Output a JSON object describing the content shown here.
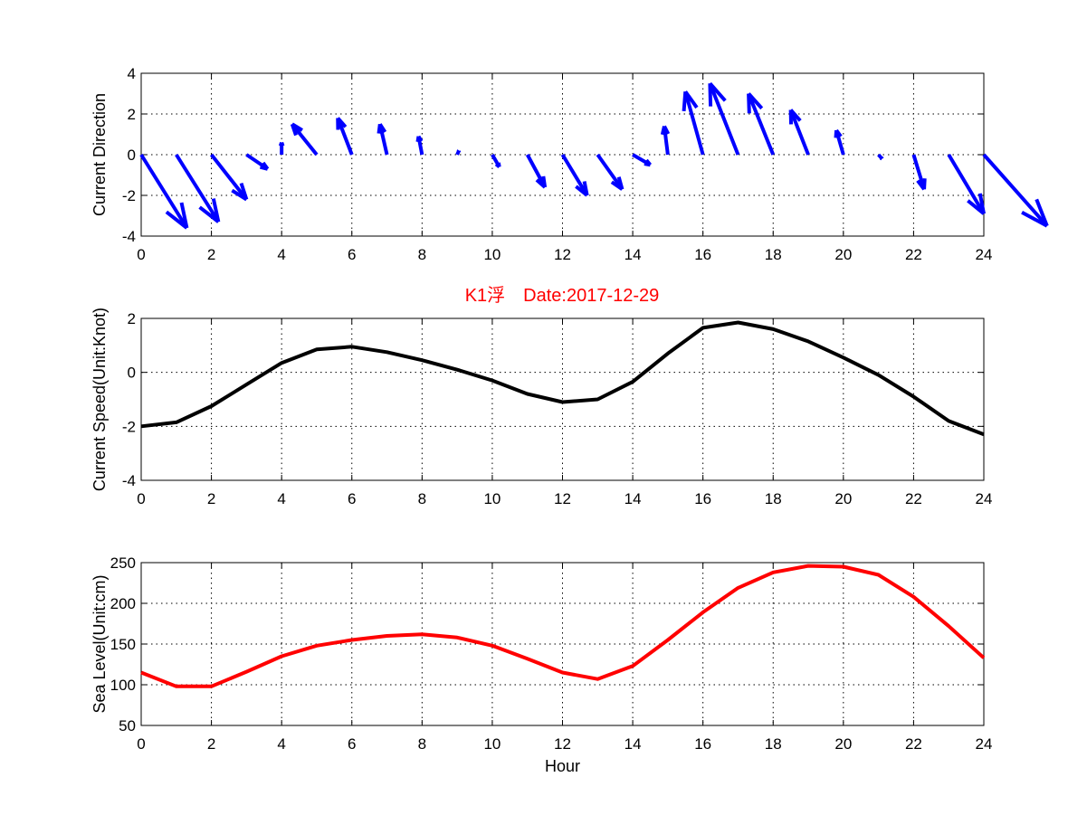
{
  "figure_title": "K1浮　Date:2017-12-29",
  "colors": {
    "quiver": "#0000ff",
    "speed": "#000000",
    "sea_level": "#ff0000",
    "title": "#ff0000"
  },
  "chart_data": [
    {
      "type": "quiver",
      "ylabel": "Current Direction",
      "xlabel": "",
      "xlim": [
        0,
        24
      ],
      "ylim": [
        -4,
        4
      ],
      "xticks": [
        0,
        2,
        4,
        6,
        8,
        10,
        12,
        14,
        16,
        18,
        20,
        22,
        24
      ],
      "yticks": [
        -4,
        -2,
        0,
        2,
        4
      ],
      "grid": true,
      "x": [
        0,
        1,
        2,
        3,
        4,
        5,
        6,
        7,
        8,
        9,
        10,
        11,
        12,
        13,
        14,
        15,
        16,
        17,
        18,
        19,
        20,
        21,
        22,
        23,
        24
      ],
      "u": [
        1.3,
        1.2,
        1.0,
        0.6,
        0.0,
        -0.7,
        -0.4,
        -0.2,
        -0.1,
        0.05,
        0.2,
        0.5,
        0.7,
        0.7,
        0.5,
        -0.1,
        -0.5,
        -0.8,
        -0.7,
        -0.5,
        -0.2,
        0.1,
        0.3,
        1.0,
        1.8
      ],
      "v": [
        -3.6,
        -3.3,
        -2.2,
        -0.7,
        0.6,
        1.5,
        1.8,
        1.5,
        0.9,
        0.2,
        -0.6,
        -1.6,
        -2.0,
        -1.7,
        -0.5,
        1.4,
        3.1,
        3.5,
        3.0,
        2.2,
        1.2,
        -0.2,
        -1.7,
        -2.9,
        -3.5
      ]
    },
    {
      "type": "line",
      "title": "K1浮　Date:2017-12-29",
      "ylabel": "Current Speed(Unit:Knot)",
      "xlabel": "",
      "xlim": [
        0,
        24
      ],
      "ylim": [
        -4,
        2
      ],
      "xticks": [
        0,
        2,
        4,
        6,
        8,
        10,
        12,
        14,
        16,
        18,
        20,
        22,
        24
      ],
      "yticks": [
        -4,
        -2,
        0,
        2
      ],
      "grid": true,
      "series": [
        {
          "x": [
            0,
            1,
            2,
            3,
            4,
            5,
            6,
            7,
            8,
            9,
            10,
            11,
            12,
            13,
            14,
            15,
            16,
            17,
            18,
            19,
            20,
            21,
            22,
            23,
            24
          ],
          "values": [
            -2.0,
            -1.85,
            -1.25,
            -0.45,
            0.35,
            0.85,
            0.95,
            0.75,
            0.45,
            0.1,
            -0.3,
            -0.8,
            -1.1,
            -1.0,
            -0.35,
            0.7,
            1.65,
            1.85,
            1.6,
            1.15,
            0.55,
            -0.1,
            -0.9,
            -1.8,
            -2.3
          ]
        }
      ]
    },
    {
      "type": "line",
      "ylabel": "Sea Level(Unit:cm)",
      "xlabel": "Hour",
      "xlim": [
        0,
        24
      ],
      "ylim": [
        50,
        250
      ],
      "xticks": [
        0,
        2,
        4,
        6,
        8,
        10,
        12,
        14,
        16,
        18,
        20,
        22,
        24
      ],
      "yticks": [
        50,
        100,
        150,
        200,
        250
      ],
      "grid": true,
      "series": [
        {
          "x": [
            0,
            1,
            2,
            3,
            4,
            5,
            6,
            7,
            8,
            9,
            10,
            11,
            12,
            13,
            14,
            15,
            16,
            17,
            18,
            19,
            20,
            21,
            22,
            23,
            24
          ],
          "values": [
            115,
            98,
            98,
            116,
            135,
            148,
            155,
            160,
            162,
            158,
            148,
            132,
            115,
            107,
            123,
            155,
            189,
            219,
            238,
            246,
            245,
            235,
            208,
            172,
            133
          ]
        }
      ]
    }
  ]
}
